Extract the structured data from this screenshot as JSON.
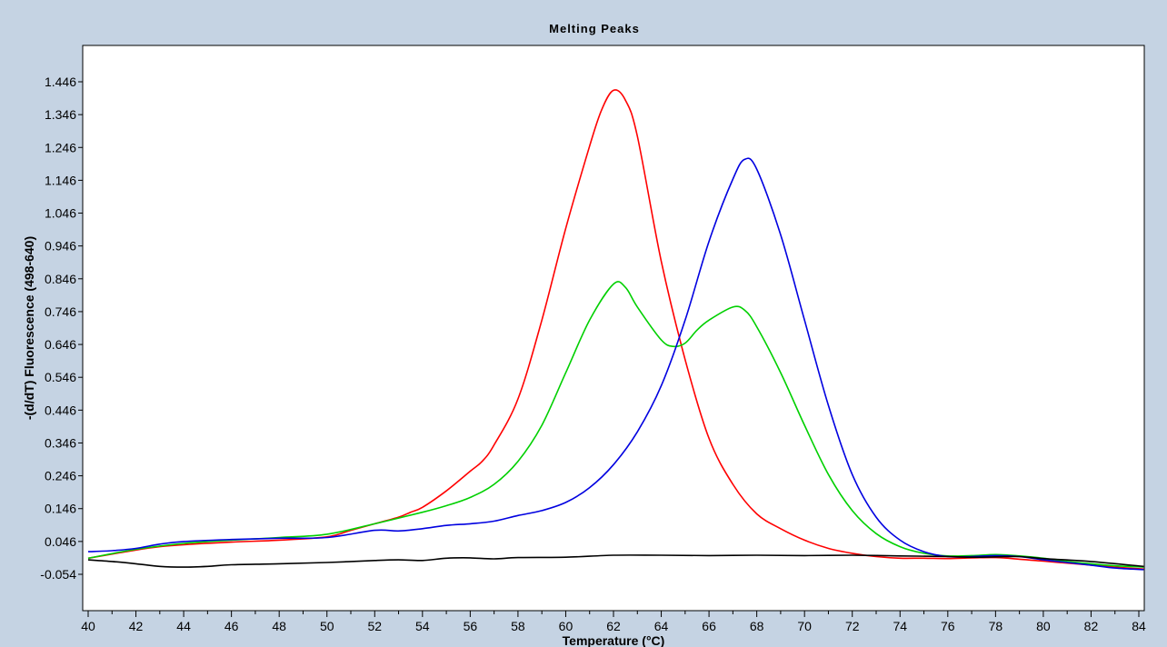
{
  "chart_data": {
    "type": "line",
    "title": "Melting Peaks",
    "xlabel": "Temperature (°C)",
    "ylabel": "-(d/dT) Fluorescence (498-640)",
    "xlim": [
      40,
      84
    ],
    "ylim": [
      -0.054,
      1.446
    ],
    "x_ticks": [
      "40",
      "42",
      "44",
      "46",
      "48",
      "50",
      "52",
      "54",
      "56",
      "58",
      "60",
      "62",
      "64",
      "66",
      "68",
      "70",
      "72",
      "74",
      "76",
      "78",
      "80",
      "82",
      "84"
    ],
    "y_ticks": [
      "-0.054",
      "0.046",
      "0.146",
      "0.246",
      "0.346",
      "0.446",
      "0.546",
      "0.646",
      "0.746",
      "0.846",
      "0.946",
      "1.046",
      "1.146",
      "1.246",
      "1.346",
      "1.446"
    ],
    "grid": false,
    "legend": "none",
    "series": [
      {
        "color": "#ff0000",
        "x": [
          40,
          42,
          43,
          44,
          46,
          48,
          50,
          51,
          52,
          53,
          53.5,
          54,
          55,
          56,
          56.5,
          57,
          58,
          59,
          60,
          61,
          61.5,
          62,
          62.5,
          63,
          64,
          65,
          66,
          67,
          68,
          69,
          70,
          71,
          72,
          73,
          74,
          75,
          76,
          77,
          78,
          79,
          80,
          81,
          82,
          83,
          84.2
        ],
        "y": [
          -0.005,
          0.02,
          0.03,
          0.036,
          0.044,
          0.05,
          0.06,
          0.08,
          0.1,
          0.12,
          0.135,
          0.15,
          0.2,
          0.26,
          0.29,
          0.34,
          0.48,
          0.72,
          1.0,
          1.25,
          1.36,
          1.42,
          1.39,
          1.28,
          0.9,
          0.6,
          0.36,
          0.22,
          0.13,
          0.085,
          0.05,
          0.025,
          0.01,
          0.0,
          -0.005,
          -0.005,
          -0.006,
          -0.004,
          -0.003,
          -0.008,
          -0.014,
          -0.02,
          -0.026,
          -0.032,
          -0.038
        ]
      },
      {
        "color": "#00d000",
        "x": [
          40,
          42,
          44,
          46,
          48,
          50,
          52,
          54,
          55,
          56,
          57,
          58,
          59,
          60,
          61,
          62,
          62.5,
          63,
          64,
          64.5,
          65,
          65.5,
          66,
          67,
          67.5,
          68,
          69,
          70,
          71,
          72,
          73,
          74,
          75,
          76,
          77,
          78,
          79,
          80,
          81,
          82,
          83,
          84.2
        ],
        "y": [
          -0.005,
          0.022,
          0.04,
          0.05,
          0.058,
          0.068,
          0.1,
          0.135,
          0.155,
          0.18,
          0.22,
          0.29,
          0.4,
          0.56,
          0.72,
          0.83,
          0.82,
          0.76,
          0.66,
          0.64,
          0.65,
          0.69,
          0.72,
          0.76,
          0.75,
          0.7,
          0.56,
          0.4,
          0.25,
          0.14,
          0.07,
          0.03,
          0.01,
          0.002,
          0.003,
          0.006,
          0.002,
          -0.005,
          -0.015,
          -0.022,
          -0.028,
          -0.032
        ]
      },
      {
        "color": "#0000e0",
        "x": [
          40,
          41,
          42,
          43,
          44,
          46,
          48,
          50,
          52,
          53,
          54,
          55,
          56,
          57,
          58,
          59,
          60,
          61,
          62,
          63,
          64,
          65,
          66,
          67,
          67.5,
          68,
          69,
          70,
          71,
          72,
          73,
          74,
          75,
          76,
          77,
          78,
          79,
          80,
          81,
          82,
          83,
          84.2
        ],
        "y": [
          0.015,
          0.018,
          0.025,
          0.038,
          0.046,
          0.052,
          0.056,
          0.058,
          0.08,
          0.078,
          0.085,
          0.095,
          0.1,
          0.108,
          0.125,
          0.14,
          0.165,
          0.21,
          0.28,
          0.38,
          0.52,
          0.72,
          0.96,
          1.15,
          1.21,
          1.18,
          0.98,
          0.72,
          0.46,
          0.25,
          0.12,
          0.05,
          0.015,
          0.0,
          0.0,
          0.003,
          0.0,
          -0.01,
          -0.018,
          -0.026,
          -0.035,
          -0.04
        ]
      },
      {
        "color": "#000000",
        "x": [
          40,
          41,
          42,
          43,
          44,
          45,
          46,
          48,
          50,
          52,
          53,
          54,
          55,
          56,
          57,
          58,
          60,
          62,
          64,
          66,
          68,
          70,
          72,
          74,
          76,
          77,
          78,
          79,
          80,
          82,
          84.2
        ],
        "y": [
          -0.01,
          -0.015,
          -0.022,
          -0.03,
          -0.032,
          -0.03,
          -0.025,
          -0.022,
          -0.018,
          -0.012,
          -0.01,
          -0.012,
          -0.005,
          -0.004,
          -0.007,
          -0.003,
          -0.002,
          0.004,
          0.004,
          0.003,
          0.004,
          0.003,
          0.004,
          0.002,
          0.0,
          -0.002,
          -0.001,
          0.0,
          -0.006,
          -0.015,
          -0.03
        ]
      }
    ]
  }
}
